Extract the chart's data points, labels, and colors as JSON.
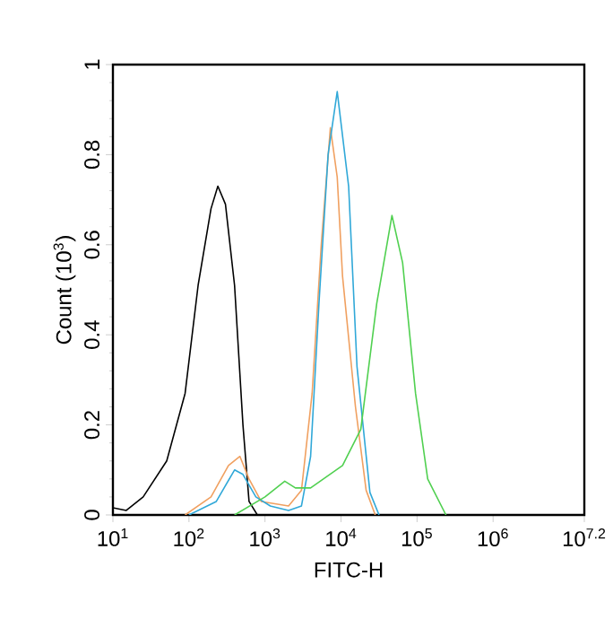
{
  "chart_data": {
    "type": "line",
    "xlabel": "FITC-H",
    "ylabel": "Count (10$^{3}$)",
    "log": "x",
    "xlim": [
      10,
      15848932
    ],
    "ylim": [
      0,
      1
    ],
    "xticks": [
      {
        "value": 10,
        "label": "10$^{1}$"
      },
      {
        "value": 100,
        "label": "10$^{2}$"
      },
      {
        "value": 1000,
        "label": "10$^{3}$"
      },
      {
        "value": 10000,
        "label": "10$^{4}$"
      },
      {
        "value": 100000,
        "label": "10$^{5}$"
      },
      {
        "value": 1000000,
        "label": "10$^{6}$"
      },
      {
        "value": 15848932,
        "label": "10$^{7.2}$"
      }
    ],
    "yticks": [
      0,
      0.2,
      0.4,
      0.6,
      0.8,
      1
    ],
    "series": [
      {
        "color": "#000000",
        "x": [
          10,
          15,
          25,
          51,
          89,
          132,
          195,
          240,
          302,
          398,
          513,
          617,
          794
        ],
        "values": [
          0.016,
          0.01,
          0.04,
          0.12,
          0.27,
          0.51,
          0.68,
          0.73,
          0.69,
          0.51,
          0.2,
          0.03,
          0
        ]
      },
      {
        "color": "#f0a060",
        "x": [
          89,
          195,
          331,
          468,
          617,
          891,
          2042,
          3020,
          4169,
          5495,
          7244,
          8913,
          10470,
          15490,
          21380,
          28180
        ],
        "values": [
          0,
          0.04,
          0.11,
          0.13,
          0.08,
          0.03,
          0.02,
          0.055,
          0.27,
          0.6,
          0.86,
          0.75,
          0.53,
          0.24,
          0.055,
          0
        ]
      },
      {
        "color": "#30a8d8",
        "x": [
          100,
          229,
          398,
          513,
          759,
          1175,
          2042,
          3020,
          3981,
          5129,
          6761,
          8913,
          12590,
          16220,
          23990,
          31620
        ],
        "values": [
          0,
          0.03,
          0.1,
          0.09,
          0.04,
          0.02,
          0.01,
          0.02,
          0.13,
          0.47,
          0.8,
          0.94,
          0.73,
          0.33,
          0.05,
          0
        ]
      },
      {
        "color": "#50d050",
        "x": [
          398,
          1000,
          1820,
          2512,
          3981,
          10470,
          18200,
          29510,
          46770,
          64570,
          95500,
          138000,
          240000
        ],
        "values": [
          0,
          0.04,
          0.075,
          0.06,
          0.06,
          0.11,
          0.19,
          0.47,
          0.665,
          0.56,
          0.27,
          0.08,
          0
        ]
      }
    ]
  }
}
